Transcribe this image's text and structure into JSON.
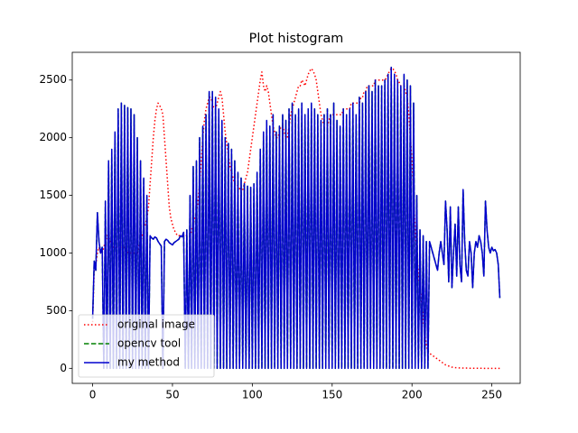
{
  "chart_data": {
    "type": "line",
    "title": "Plot histogram",
    "x": [
      0,
      1,
      2,
      3,
      4,
      5,
      6,
      7,
      8,
      9,
      10,
      11,
      12,
      13,
      14,
      15,
      16,
      17,
      18,
      19,
      20,
      21,
      22,
      23,
      24,
      25,
      26,
      27,
      28,
      29,
      30,
      31,
      32,
      33,
      34,
      35,
      36,
      37,
      38,
      39,
      40,
      41,
      42,
      43,
      44,
      45,
      46,
      47,
      48,
      49,
      50,
      51,
      52,
      53,
      54,
      55,
      56,
      57,
      58,
      59,
      60,
      61,
      62,
      63,
      64,
      65,
      66,
      67,
      68,
      69,
      70,
      71,
      72,
      73,
      74,
      75,
      76,
      77,
      78,
      79,
      80,
      81,
      82,
      83,
      84,
      85,
      86,
      87,
      88,
      89,
      90,
      91,
      92,
      93,
      94,
      95,
      96,
      97,
      98,
      99,
      100,
      101,
      102,
      103,
      104,
      105,
      106,
      107,
      108,
      109,
      110,
      111,
      112,
      113,
      114,
      115,
      116,
      117,
      118,
      119,
      120,
      121,
      122,
      123,
      124,
      125,
      126,
      127,
      128,
      129,
      130,
      131,
      132,
      133,
      134,
      135,
      136,
      137,
      138,
      139,
      140,
      141,
      142,
      143,
      144,
      145,
      146,
      147,
      148,
      149,
      150,
      151,
      152,
      153,
      154,
      155,
      156,
      157,
      158,
      159,
      160,
      161,
      162,
      163,
      164,
      165,
      166,
      167,
      168,
      169,
      170,
      171,
      172,
      173,
      174,
      175,
      176,
      177,
      178,
      179,
      180,
      181,
      182,
      183,
      184,
      185,
      186,
      187,
      188,
      189,
      190,
      191,
      192,
      193,
      194,
      195,
      196,
      197,
      198,
      199,
      200,
      201,
      202,
      203,
      204,
      205,
      206,
      207,
      208,
      209,
      210,
      211,
      212,
      213,
      214,
      215,
      216,
      217,
      218,
      219,
      220,
      221,
      222,
      223,
      224,
      225,
      226,
      227,
      228,
      229,
      230,
      231,
      232,
      233,
      234,
      235,
      236,
      237,
      238,
      239,
      240,
      241,
      242,
      243,
      244,
      245,
      246,
      247,
      248,
      249,
      250,
      251,
      252,
      253,
      254,
      255
    ],
    "series": [
      {
        "name": "original image",
        "color": "#ff0000",
        "linestyle": "dotted",
        "values": [
          400,
          850,
          900,
          1000,
          1050,
          1000,
          1000,
          1050,
          1100,
          1150,
          1150,
          1100,
          1100,
          1050,
          1050,
          1050,
          1050,
          1050,
          1050,
          1050,
          1050,
          1050,
          1000,
          1000,
          1000,
          1000,
          1000,
          1000,
          1000,
          1050,
          1100,
          1150,
          1200,
          1250,
          1300,
          1400,
          1600,
          1800,
          2000,
          2150,
          2250,
          2300,
          2280,
          2250,
          2200,
          2000,
          1800,
          1600,
          1400,
          1300,
          1250,
          1200,
          1180,
          1150,
          1150,
          1150,
          1150,
          1150,
          1150,
          1150,
          1150,
          1150,
          1200,
          1250,
          1300,
          1350,
          1450,
          1600,
          1800,
          2000,
          2150,
          2250,
          2300,
          2350,
          2350,
          2300,
          2250,
          2250,
          2300,
          2350,
          2400,
          2350,
          2200,
          2050,
          1950,
          1850,
          1750,
          1700,
          1650,
          1600,
          1600,
          1580,
          1560,
          1550,
          1550,
          1600,
          1650,
          1700,
          1800,
          1900,
          2000,
          2100,
          2200,
          2300,
          2400,
          2500,
          2570,
          2450,
          2400,
          2450,
          2400,
          2300,
          2200,
          2100,
          2050,
          2000,
          2000,
          2050,
          2100,
          2100,
          2050,
          2000,
          2000,
          2100,
          2200,
          2250,
          2300,
          2350,
          2400,
          2450,
          2450,
          2500,
          2480,
          2450,
          2500,
          2550,
          2580,
          2600,
          2580,
          2550,
          2500,
          2400,
          2300,
          2200,
          2150,
          2100,
          2100,
          2100,
          2150,
          2200,
          2200,
          2200,
          2200,
          2200,
          2200,
          2200,
          2200,
          2250,
          2250,
          2250,
          2250,
          2250,
          2300,
          2300,
          2300,
          2300,
          2300,
          2300,
          2350,
          2350,
          2400,
          2400,
          2450,
          2450,
          2450,
          2450,
          2450,
          2500,
          2500,
          2500,
          2500,
          2500,
          2500,
          2500,
          2520,
          2550,
          2580,
          2600,
          2600,
          2580,
          2550,
          2500,
          2480,
          2450,
          2450,
          2450,
          2400,
          2350,
          2200,
          2000,
          1800,
          1500,
          1200,
          1000,
          800,
          700,
          600,
          450,
          300,
          200,
          150,
          130,
          120,
          110,
          100,
          90,
          80,
          70,
          60,
          50,
          40,
          30,
          25,
          20,
          15,
          10,
          8,
          6,
          5,
          4,
          3,
          3,
          2,
          2,
          2,
          1,
          1,
          1,
          1,
          1,
          1,
          1,
          1,
          1,
          1,
          0,
          0,
          0,
          0,
          0,
          0,
          0,
          0,
          0,
          0,
          0
        ]
      },
      {
        "name": "opencv tool",
        "color": "#008000",
        "linestyle": "dashed",
        "values": [
          430,
          930,
          850,
          1350,
          1100,
          1000,
          1050,
          0,
          1450,
          0,
          1800,
          0,
          1900,
          0,
          2050,
          0,
          2250,
          0,
          2300,
          0,
          2280,
          0,
          2260,
          0,
          2250,
          0,
          2200,
          0,
          2000,
          0,
          1800,
          0,
          1650,
          0,
          1500,
          0,
          1150,
          1130,
          1120,
          1140,
          1130,
          1100,
          1080,
          1060,
          0,
          1100,
          1120,
          1110,
          1090,
          1080,
          1070,
          1090,
          1100,
          1110,
          1120,
          1150,
          1140,
          1180,
          0,
          1200,
          0,
          1500,
          0,
          1750,
          0,
          1800,
          0,
          2000,
          0,
          2100,
          0,
          2200,
          0,
          2400,
          0,
          2400,
          0,
          2350,
          0,
          2250,
          0,
          2150,
          0,
          2000,
          0,
          1950,
          0,
          1900,
          0,
          1800,
          0,
          1700,
          0,
          1650,
          0,
          1600,
          0,
          1580,
          0,
          1570,
          0,
          1600,
          0,
          1700,
          0,
          1900,
          0,
          2050,
          0,
          2150,
          0,
          2100,
          0,
          2200,
          0,
          2050,
          0,
          2100,
          0,
          2200,
          0,
          2150,
          0,
          2250,
          0,
          2300,
          0,
          2200,
          0,
          2250,
          0,
          2300,
          0,
          2200,
          0,
          2250,
          0,
          2300,
          0,
          2250,
          0,
          2200,
          0,
          2150,
          0,
          2200,
          0,
          2250,
          0,
          2200,
          0,
          2300,
          0,
          2150,
          0,
          2100,
          0,
          2250,
          0,
          2200,
          0,
          2250,
          0,
          2300,
          0,
          2200,
          0,
          2350,
          0,
          2300,
          0,
          2400,
          0,
          2450,
          0,
          2400,
          0,
          2500,
          0,
          2450,
          0,
          2450,
          0,
          2500,
          0,
          2550,
          0,
          2610,
          0,
          2550,
          0,
          2500,
          0,
          2450,
          0,
          2550,
          0,
          2500,
          0,
          2450,
          0,
          2300,
          0,
          1500,
          0,
          1200,
          0,
          1150,
          0,
          1100,
          0,
          1100,
          1050,
          1000,
          950,
          900,
          850,
          1000,
          1100,
          1000,
          900,
          1450,
          1200,
          750,
          1400,
          700,
          1000,
          1250,
          800,
          1400,
          900,
          750,
          1550,
          1100,
          850,
          800,
          1100,
          1000,
          700,
          1000,
          1100,
          1050,
          1150,
          1100,
          1000,
          800,
          1450,
          1200,
          1050,
          1000,
          1050,
          1020,
          1030,
          1000,
          900,
          610
        ]
      },
      {
        "name": "my method",
        "color": "#0000cd",
        "linestyle": "solid",
        "values": [
          430,
          930,
          850,
          1350,
          1100,
          1000,
          1050,
          0,
          1450,
          0,
          1800,
          0,
          1900,
          0,
          2050,
          0,
          2250,
          0,
          2300,
          0,
          2280,
          0,
          2260,
          0,
          2250,
          0,
          2200,
          0,
          2000,
          0,
          1800,
          0,
          1650,
          0,
          1500,
          0,
          1150,
          1130,
          1120,
          1140,
          1130,
          1100,
          1080,
          1060,
          0,
          1100,
          1120,
          1110,
          1090,
          1080,
          1070,
          1090,
          1100,
          1110,
          1120,
          1150,
          1140,
          1180,
          0,
          1200,
          0,
          1500,
          0,
          1750,
          0,
          1800,
          0,
          2000,
          0,
          2100,
          0,
          2200,
          0,
          2400,
          0,
          2400,
          0,
          2350,
          0,
          2250,
          0,
          2150,
          0,
          2000,
          0,
          1950,
          0,
          1900,
          0,
          1800,
          0,
          1700,
          0,
          1650,
          0,
          1600,
          0,
          1580,
          0,
          1570,
          0,
          1600,
          0,
          1700,
          0,
          1900,
          0,
          2050,
          0,
          2150,
          0,
          2100,
          0,
          2200,
          0,
          2050,
          0,
          2100,
          0,
          2200,
          0,
          2150,
          0,
          2250,
          0,
          2300,
          0,
          2200,
          0,
          2250,
          0,
          2300,
          0,
          2200,
          0,
          2250,
          0,
          2300,
          0,
          2250,
          0,
          2200,
          0,
          2150,
          0,
          2200,
          0,
          2250,
          0,
          2200,
          0,
          2300,
          0,
          2150,
          0,
          2100,
          0,
          2250,
          0,
          2200,
          0,
          2250,
          0,
          2300,
          0,
          2200,
          0,
          2350,
          0,
          2300,
          0,
          2400,
          0,
          2450,
          0,
          2400,
          0,
          2500,
          0,
          2450,
          0,
          2450,
          0,
          2500,
          0,
          2550,
          0,
          2610,
          0,
          2550,
          0,
          2500,
          0,
          2450,
          0,
          2550,
          0,
          2500,
          0,
          2450,
          0,
          2300,
          0,
          1500,
          0,
          1200,
          0,
          1150,
          0,
          1100,
          0,
          1100,
          1050,
          1000,
          950,
          900,
          850,
          1000,
          1100,
          1000,
          900,
          1450,
          1200,
          750,
          1400,
          700,
          1000,
          1250,
          800,
          1400,
          900,
          750,
          1550,
          1100,
          850,
          800,
          1100,
          1000,
          700,
          1000,
          1100,
          1050,
          1150,
          1100,
          1000,
          800,
          1450,
          1200,
          1050,
          1000,
          1050,
          1020,
          1030,
          1000,
          900,
          610
        ]
      }
    ],
    "xlim": [
      -12.75,
      267.75
    ],
    "xticks": [
      0,
      50,
      100,
      150,
      200,
      250
    ],
    "ylim": [
      -130.5,
      2740.5
    ],
    "yticks": [
      0,
      500,
      1000,
      1500,
      2000,
      2500
    ],
    "grid": false,
    "legend": "lower left"
  }
}
